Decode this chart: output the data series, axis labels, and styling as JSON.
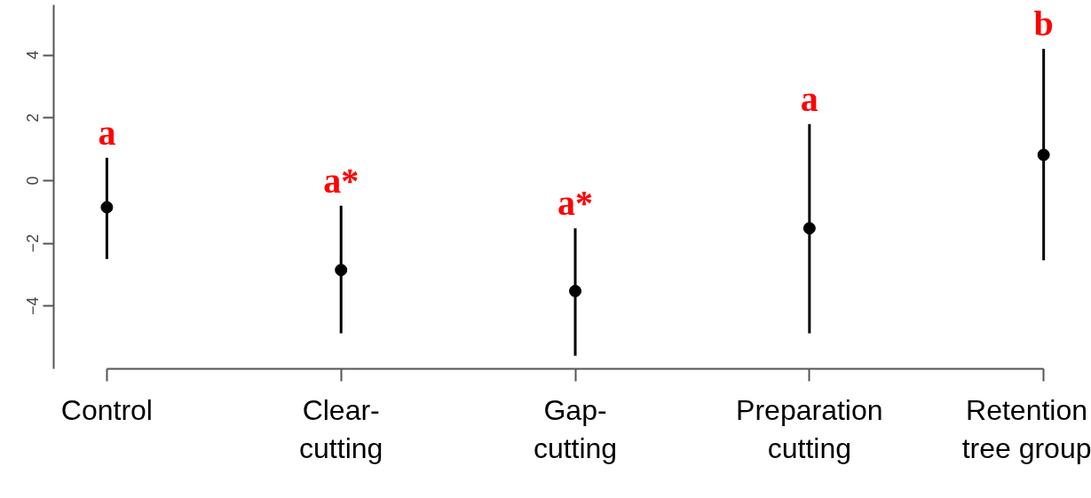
{
  "chart_data": {
    "type": "scatter",
    "marker": "circle",
    "grid": false,
    "categories": [
      "Control",
      "Clear-\ncutting",
      "Gap-\ncutting",
      "Preparation\ncutting",
      "Retention\ntree group"
    ],
    "series": [
      {
        "color": "#000000",
        "values": [
          -0.85,
          -2.85,
          -3.52,
          -1.52,
          0.82
        ],
        "errors": [
          [
            -2.5,
            0.73
          ],
          [
            -4.87,
            -0.8
          ],
          [
            -5.58,
            -1.52
          ],
          [
            -4.87,
            1.8
          ],
          [
            -2.54,
            4.2
          ]
        ]
      }
    ],
    "ylim": [
      -6,
      5.6
    ],
    "yticks": [
      -4,
      -2,
      0,
      2,
      4
    ],
    "annotations": [
      "a",
      "a*",
      "a*",
      "a",
      "b"
    ]
  }
}
